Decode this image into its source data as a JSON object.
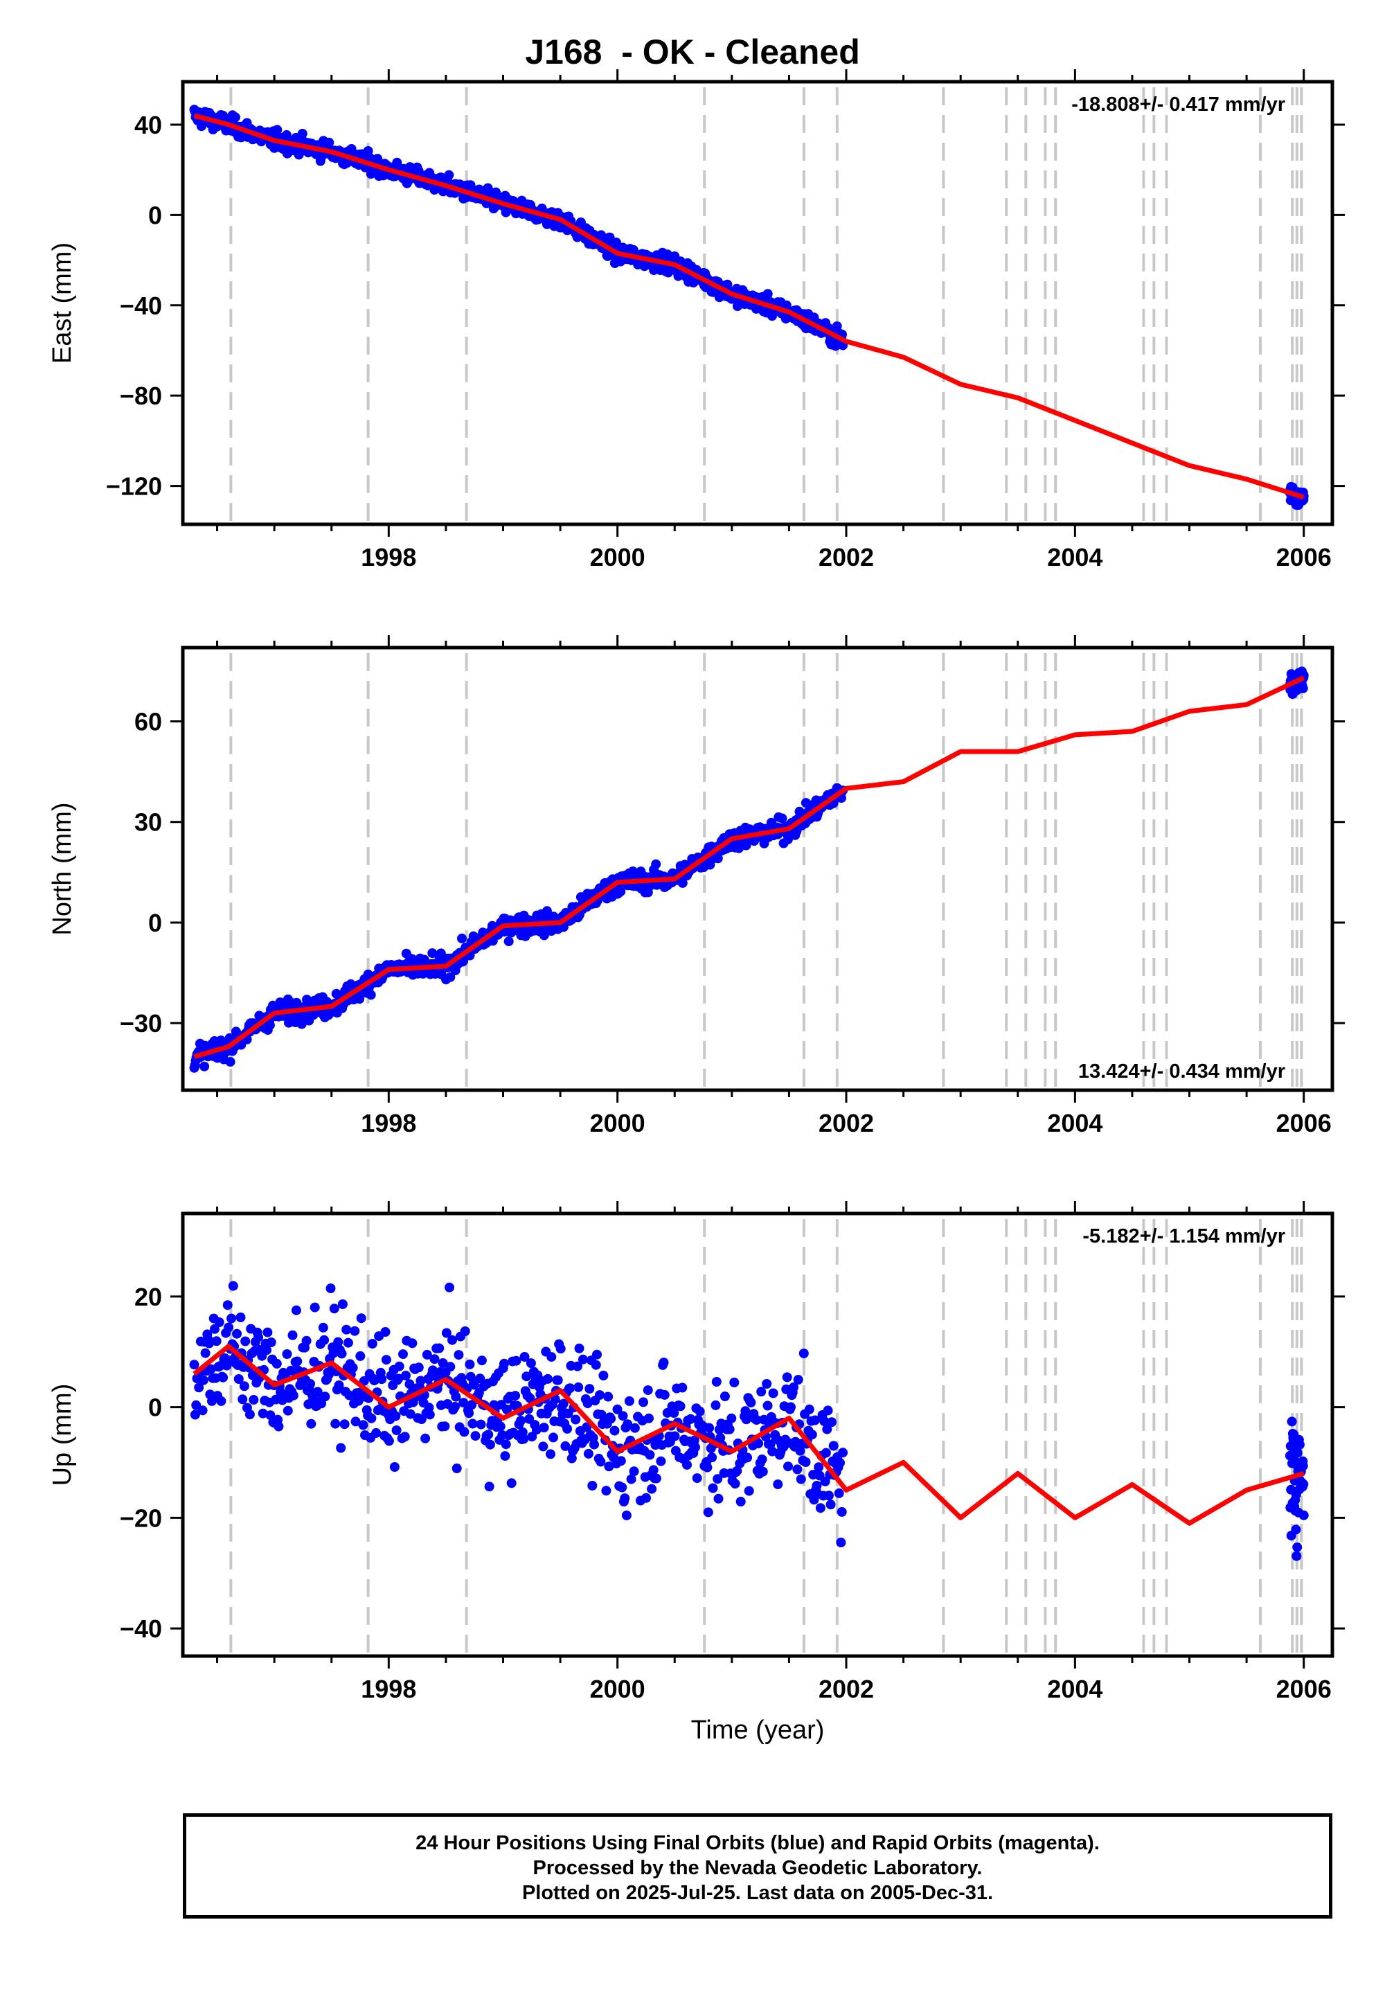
{
  "title": "J168  - OK - Cleaned",
  "xlabel": "Time (year)",
  "footer": {
    "line1": "24 Hour Positions Using Final Orbits (blue) and Rapid Orbits (magenta).",
    "line2": "Processed by the Nevada Geodetic Laboratory.",
    "line3": "Plotted on 2025-Jul-25. Last data on 2005-Dec-31."
  },
  "colors": {
    "observations": "#0000ff",
    "model": "#ff0000",
    "breaks": "#c8c8c8",
    "frame": "#000000"
  },
  "chart_data": [
    {
      "type": "scatter",
      "panel": "east",
      "ylabel": "East (mm)",
      "xlim": [
        1996.2,
        2006.25
      ],
      "ylim": [
        -137,
        59
      ],
      "yticks": [
        40,
        0,
        -40,
        -80,
        -120
      ],
      "xticks": [
        1998,
        2000,
        2002,
        2004,
        2006
      ],
      "rate": "-18.808+/- 0.417 mm/yr",
      "rate_position": "top-right",
      "grid": false,
      "series": [
        {
          "name": "",
          "kind": "observations",
          "segments": [
            [
              1996.3,
              2001.97
            ],
            [
              2005.88,
              2006.0
            ]
          ]
        },
        {
          "name": "",
          "kind": "model",
          "x": [
            1996.3,
            1996.6,
            1997.0,
            1997.5,
            1998.0,
            1998.5,
            1999.0,
            1999.5,
            2000.0,
            2000.5,
            2001.0,
            2001.5,
            2002.0,
            2002.5,
            2003.0,
            2003.5,
            2004.0,
            2004.5,
            2005.0,
            2005.5,
            2006.0
          ],
          "y": [
            44,
            40,
            33,
            28,
            20,
            13,
            5,
            -2,
            -17,
            -22,
            -35,
            -43,
            -56,
            -63,
            -75,
            -81,
            -91,
            -101,
            -111,
            -117,
            -125
          ]
        }
      ]
    },
    {
      "type": "scatter",
      "panel": "north",
      "ylabel": "North (mm)",
      "xlim": [
        1996.2,
        2006.25
      ],
      "ylim": [
        -50,
        82
      ],
      "yticks": [
        60,
        30,
        0,
        -30
      ],
      "xticks": [
        1998,
        2000,
        2002,
        2004,
        2006
      ],
      "rate": "13.424+/- 0.434 mm/yr",
      "rate_position": "bottom-right",
      "grid": false,
      "series": [
        {
          "name": "",
          "kind": "observations",
          "segments": [
            [
              1996.3,
              2001.97
            ],
            [
              2005.88,
              2006.0
            ]
          ]
        },
        {
          "name": "",
          "kind": "model",
          "x": [
            1996.3,
            1996.6,
            1997.0,
            1997.5,
            1998.0,
            1998.5,
            1999.0,
            1999.5,
            2000.0,
            2000.5,
            2001.0,
            2001.5,
            2002.0,
            2002.5,
            2003.0,
            2003.5,
            2004.0,
            2004.5,
            2005.0,
            2005.5,
            2006.0
          ],
          "y": [
            -40,
            -37,
            -27,
            -25,
            -14,
            -13,
            -1,
            0,
            12,
            13,
            25,
            28,
            40,
            42,
            51,
            51,
            56,
            57,
            63,
            65,
            73
          ]
        }
      ]
    },
    {
      "type": "scatter",
      "panel": "up",
      "ylabel": "Up (mm)",
      "xlim": [
        1996.2,
        2006.25
      ],
      "ylim": [
        -45,
        35
      ],
      "yticks": [
        20,
        0,
        -20,
        -40
      ],
      "xticks": [
        1998,
        2000,
        2002,
        2004,
        2006
      ],
      "rate": "-5.182+/- 1.154 mm/yr",
      "rate_position": "top-right",
      "grid": false,
      "series": [
        {
          "name": "",
          "kind": "observations",
          "segments": [
            [
              1996.3,
              2001.97
            ],
            [
              2005.88,
              2006.0
            ]
          ]
        },
        {
          "name": "",
          "kind": "model",
          "x": [
            1996.3,
            1996.6,
            1997.0,
            1997.5,
            1998.0,
            1998.5,
            1999.0,
            1999.5,
            2000.0,
            2000.5,
            2001.0,
            2001.5,
            2002.0,
            2002.5,
            2003.0,
            2003.5,
            2004.0,
            2004.5,
            2005.0,
            2005.5,
            2006.0
          ],
          "y": [
            6,
            11,
            4,
            8,
            0,
            5,
            -2,
            3,
            -8,
            -3,
            -8,
            -2,
            -15,
            -10,
            -20,
            -12,
            -20,
            -14,
            -21,
            -15,
            -12
          ]
        }
      ]
    }
  ],
  "break_epochs": [
    1996.62,
    1997.82,
    1998.68,
    2000.76,
    2001.63,
    2001.92,
    2002.85,
    2003.4,
    2003.57,
    2003.74,
    2003.83,
    2004.6,
    2004.69,
    2004.8,
    2005.62,
    2005.9,
    2005.94,
    2005.98
  ]
}
